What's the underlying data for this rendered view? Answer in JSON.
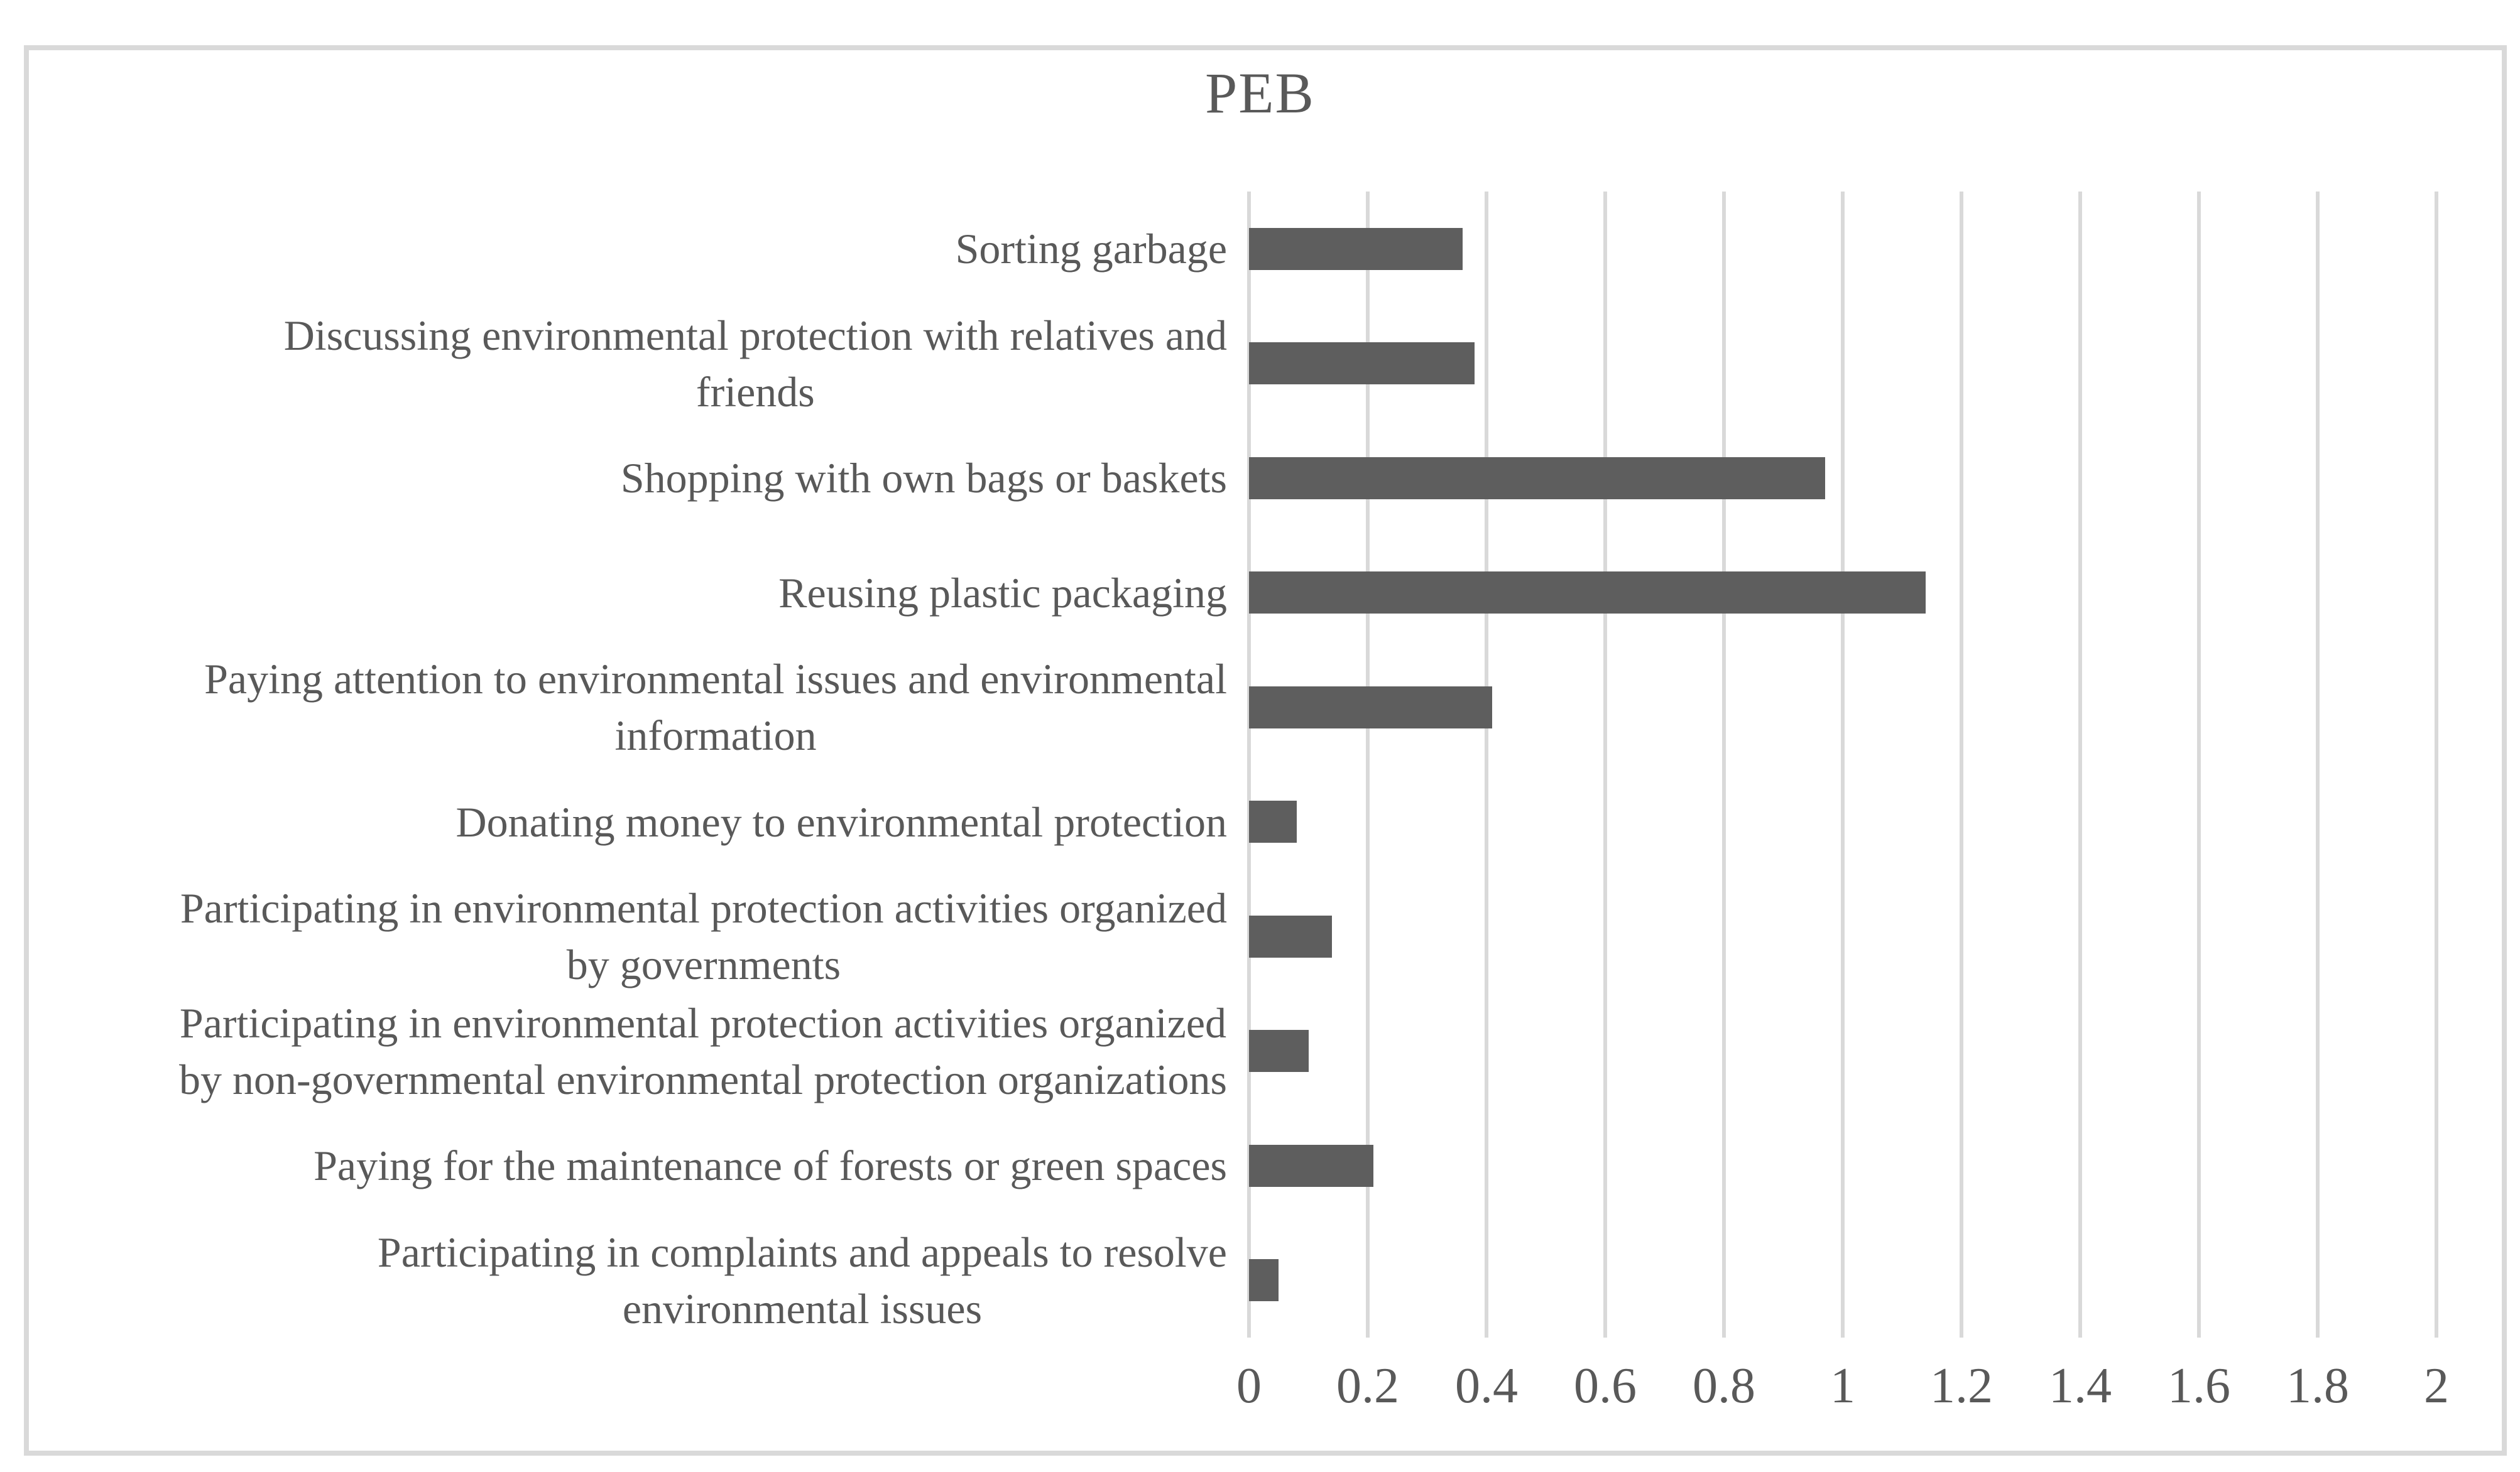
{
  "chart_data": {
    "type": "bar",
    "orientation": "horizontal",
    "title": "PEB",
    "categories": [
      "Sorting garbage",
      "Discussing environmental protection with relatives and\nfriends",
      "Shopping with own bags or baskets",
      "Reusing plastic packaging",
      "Paying attention to environmental issues and environmental\ninformation",
      "Donating money to environmental protection",
      "Participating in environmental protection activities organized\nby governments",
      "Participating in environmental protection activities organized\nby non-governmental environmental protection organizations",
      "Paying for the maintenance of forests or green spaces",
      "Participating in complaints and appeals to resolve\nenvironmental issues"
    ],
    "values": [
      0.36,
      0.38,
      0.97,
      1.14,
      0.41,
      0.08,
      0.14,
      0.1,
      0.21,
      0.05
    ],
    "xlabel": "",
    "ylabel": "",
    "xlim": [
      0,
      2
    ],
    "x_ticks": [
      "0",
      "0.2",
      "0.4",
      "0.6",
      "0.8",
      "1",
      "1.2",
      "1.4",
      "1.6",
      "1.8",
      "2"
    ],
    "grid": "vertical",
    "legend": "none",
    "colors": {
      "bar": "#5e5e5e",
      "gridline": "#d9d9d9",
      "frame": "#d9d9d9",
      "text": "#595959",
      "background": "#ffffff"
    }
  }
}
